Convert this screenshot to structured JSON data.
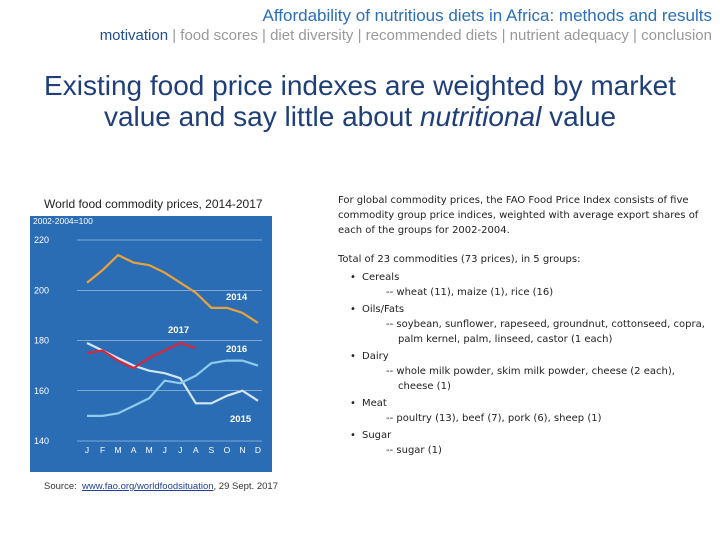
{
  "header": {
    "title": "Affordability of nutritious diets in Africa: methods and results",
    "nav_current": "motivation",
    "nav_rest": "| food scores | diet diversity | recommended diets | nutrient adequacy | conclusion"
  },
  "title_parts": [
    "Existing food price indexes are weighted by market value and say little about",
    "nutritional",
    "value"
  ],
  "chart_data": {
    "type": "line",
    "title": "World food commodity prices, 2014-2017",
    "subtitle": "2002-2004=100",
    "categories": [
      "J",
      "F",
      "M",
      "A",
      "M",
      "J",
      "J",
      "A",
      "S",
      "O",
      "N",
      "D"
    ],
    "series": [
      {
        "name": "2014",
        "color": "#e9a23b",
        "values": [
          203,
          208,
          214,
          211,
          210,
          207,
          203,
          199,
          193,
          193,
          191,
          187
        ]
      },
      {
        "name": "2015",
        "color": "#d3e6f5",
        "values": [
          179,
          176,
          173,
          170,
          168,
          167,
          165,
          155,
          155,
          158,
          160,
          156
        ]
      },
      {
        "name": "2016",
        "color": "#8fcbee",
        "values": [
          150,
          150,
          151,
          154,
          157,
          164,
          163,
          166,
          171,
          172,
          172,
          170
        ]
      },
      {
        "name": "2017",
        "color": "#d9263a",
        "values": [
          175,
          176,
          172,
          169,
          173,
          176,
          179,
          177,
          null,
          null,
          null,
          null
        ]
      }
    ],
    "ylim": [
      140,
      220
    ],
    "yticks": [
      140,
      160,
      180,
      200,
      220
    ],
    "grid": true
  },
  "source": {
    "prefix": "Source:",
    "link": "www.fao.org/worldfoodsituation",
    "suffix": ", 29 Sept. 2017"
  },
  "text": {
    "intro": "For global commodity prices, the FAO Food Price Index consists of five commodity group price indices, weighted with average export shares of each of the groups for 2002-2004.",
    "total": "Total of 23 commodities (73 prices), in 5 groups:",
    "groups": [
      {
        "name": "Cereals",
        "detail": "-- wheat (11), maize (1), rice (16)"
      },
      {
        "name": "Oils/Fats",
        "detail": "-- soybean, sunflower, rapeseed, groundnut, cottonseed, copra, palm kernel, palm, linseed, castor (1 each)"
      },
      {
        "name": "Dairy",
        "detail": "-- whole milk powder, skim milk powder, cheese (2 each), cheese (1)"
      },
      {
        "name": "Meat",
        "detail": "-- poultry (13), beef (7), pork (6), sheep (1)"
      },
      {
        "name": "Sugar",
        "detail": "-- sugar (1)"
      }
    ]
  }
}
